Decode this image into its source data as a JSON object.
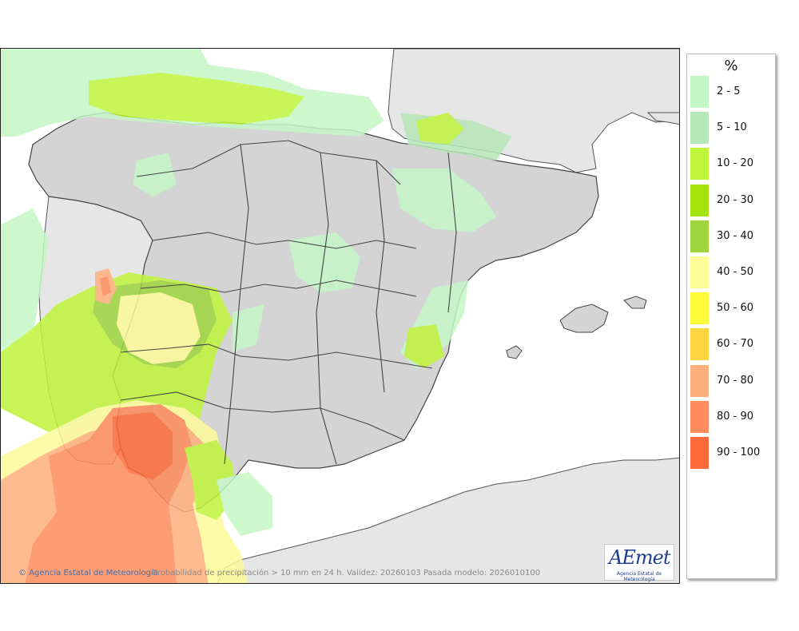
{
  "legend": {
    "unit": "%",
    "items": [
      {
        "label": "2 - 5",
        "color": "#c5f7c6"
      },
      {
        "label": "5 - 10",
        "color": "#b6e7b8"
      },
      {
        "label": "10 - 20",
        "color": "#bff53b"
      },
      {
        "label": "20 - 30",
        "color": "#a4e30c"
      },
      {
        "label": "30 - 40",
        "color": "#9ed43d"
      },
      {
        "label": "40 - 50",
        "color": "#fefb99"
      },
      {
        "label": "50 - 60",
        "color": "#fdfc3b"
      },
      {
        "label": "60 - 70",
        "color": "#fed440"
      },
      {
        "label": "70 - 80",
        "color": "#feb07c"
      },
      {
        "label": "80 - 90",
        "color": "#fe8c5c"
      },
      {
        "label": "90 - 100",
        "color": "#fe6a3a"
      }
    ]
  },
  "map": {
    "copyright": "Agencia Estatal de Meteorología",
    "caption": "Probabilidad de precipitación > 10 mm en 24 h. Validez: 20260103 Pasada modelo: 2026010100",
    "logo": {
      "word": "AEmet",
      "subtitle": "Agencia Estatal de Meteorología"
    },
    "colors": {
      "land": "#d4d4d4",
      "foreign_land": "#e6e6e6",
      "sea": "#ffffff",
      "borders": "#444444"
    }
  }
}
